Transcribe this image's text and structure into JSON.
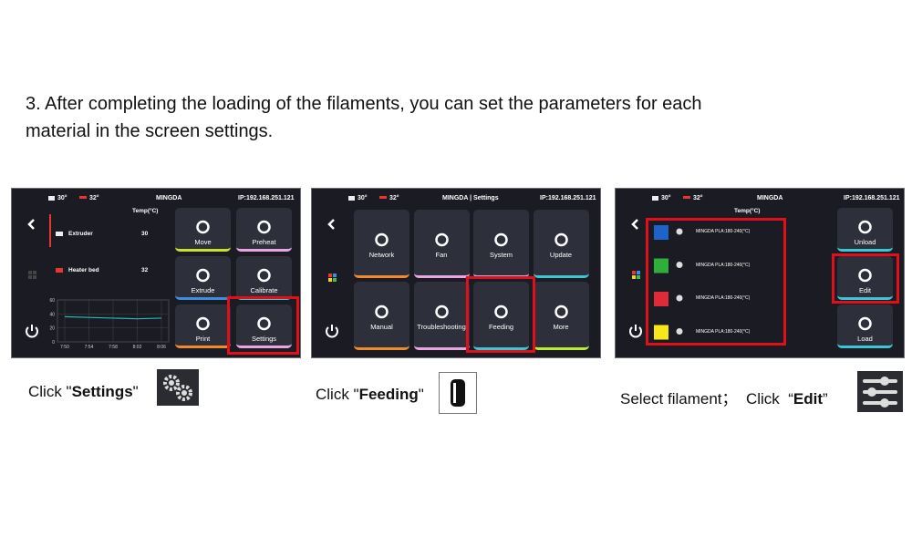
{
  "instruction": {
    "lines": [
      "3.  After completing the loading of the filaments, you can set the parameters for each",
      "material in the screen settings."
    ]
  },
  "screens": [
    {
      "status": {
        "nozzle": "30°",
        "bed": "32°",
        "title": "MINGDA",
        "ip": "IP:192.168.251.121"
      },
      "temp_header": "Temp(°C)",
      "temps": [
        {
          "label": "Extruder",
          "value": 30
        },
        {
          "label": "Heater bed",
          "value": 32
        }
      ],
      "graph": {
        "type": "line",
        "categories": [
          "7:50",
          "7:54",
          "7:58",
          "8:02",
          "8:06"
        ],
        "values": [
          36,
          35,
          34,
          33,
          34
        ],
        "ylim": [
          0,
          60
        ],
        "yticks": [
          0,
          20,
          40,
          60
        ]
      },
      "buttons": [
        "Move",
        "Preheat",
        "Extrude",
        "Calibrate",
        "Print",
        "Settings"
      ],
      "caption": {
        "before": "Click \"",
        "bold": "Settings",
        "after": "\""
      }
    },
    {
      "status": {
        "nozzle": "30°",
        "bed": "32°",
        "title": "MINGDA | Settings",
        "ip": "IP:192.168.251.121"
      },
      "buttons": [
        "Network",
        "Fan",
        "System",
        "Update",
        "Manual",
        "Troubleshooting",
        "Feeding",
        "More"
      ],
      "caption": {
        "before": "Click \"",
        "bold": "Feeding",
        "after": "\""
      }
    },
    {
      "status": {
        "nozzle": "30°",
        "bed": "32°",
        "title": "MINGDA",
        "ip": "IP:192.168.251.121"
      },
      "temp_header": "Temp(°C)",
      "filaments": [
        "MINGDA PLA:180-240(°C)",
        "MINGDA PLA:180-240(°C)",
        "MINGDA PLA:180-240(°C)",
        "MINGDA PLA:180-240(°C)"
      ],
      "buttons": [
        "Unload",
        "Edit",
        "Load"
      ],
      "caption": {
        "before": "Select filament；  Click  “",
        "bold": "Edit",
        "after": "”"
      }
    }
  ]
}
